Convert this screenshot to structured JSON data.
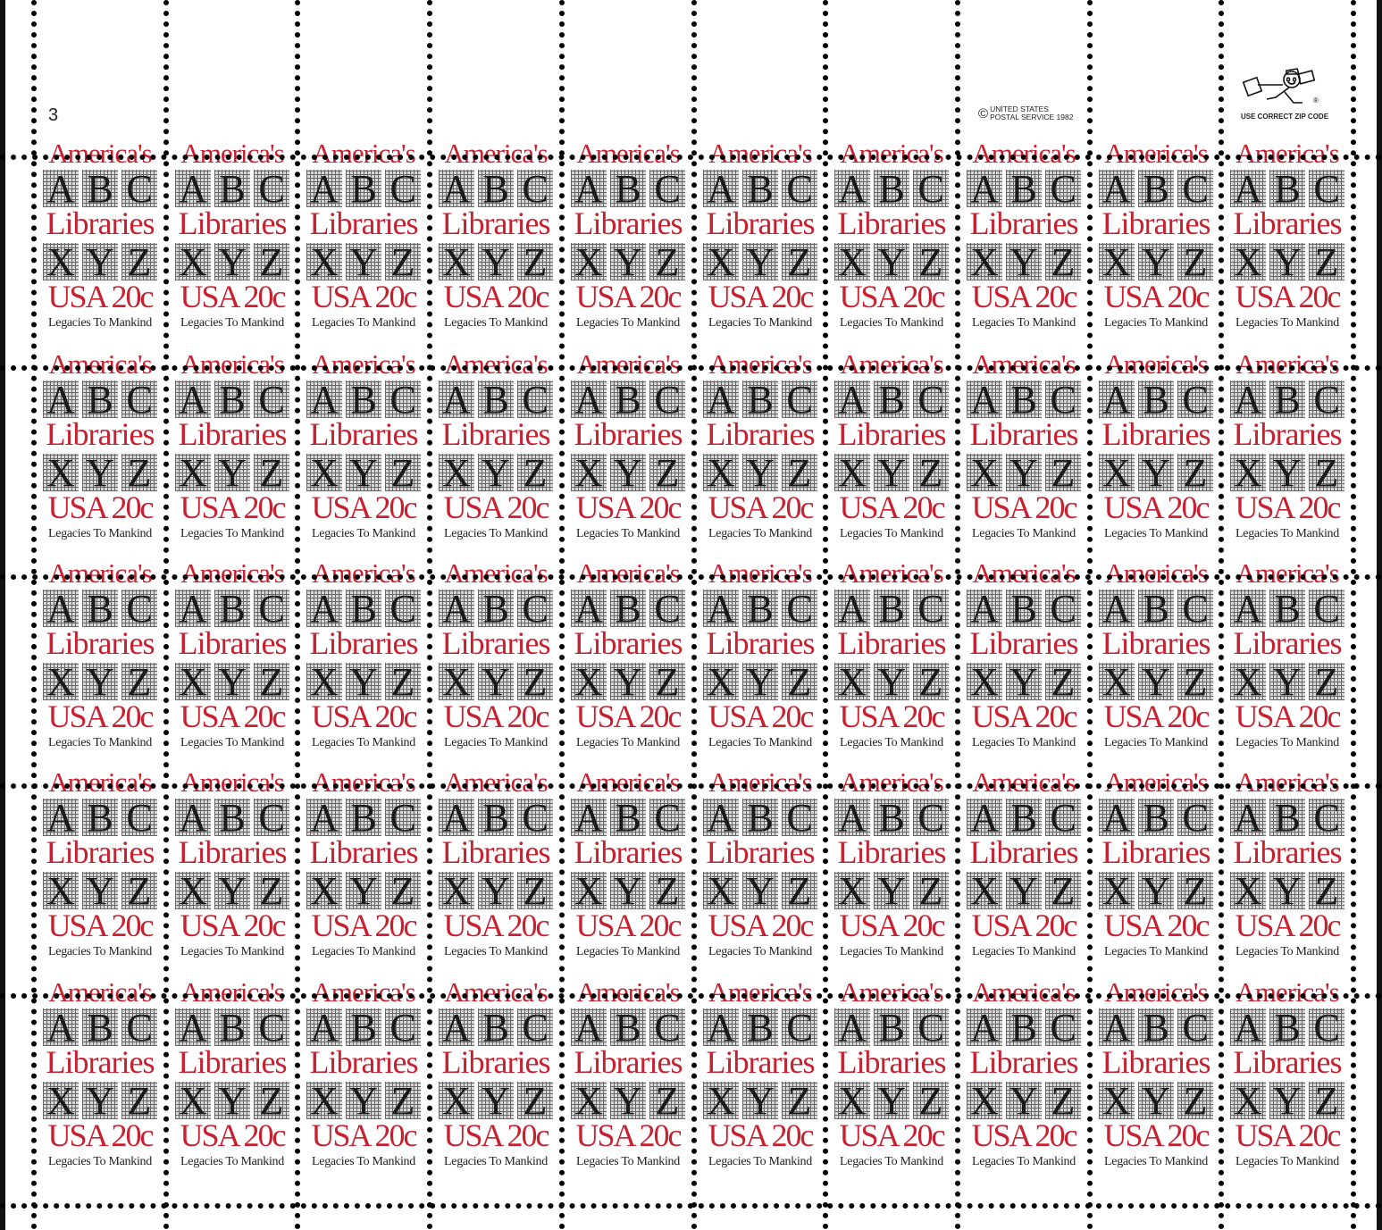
{
  "sheet": {
    "rows": 5,
    "columns": 10,
    "plate_number": "3",
    "copyright_symbol": "©",
    "copyright_line1": "UNITED STATES",
    "copyright_line2": "POSTAL SERVICE 1982",
    "zip_caption": "USE CORRECT ZIP CODE",
    "zip_registered": "®",
    "zip_mascot_icon": "mr-zip-mascot-icon"
  },
  "stamp": {
    "title": "America's",
    "letters_top": [
      "A",
      "B",
      "C"
    ],
    "subject": "Libraries",
    "letters_bottom": [
      "X",
      "Y",
      "Z"
    ],
    "denomination": "USA 20c",
    "tagline": "Legacies To Mankind",
    "colors": {
      "red": "#c8202f",
      "black": "#1a1a1a"
    }
  }
}
